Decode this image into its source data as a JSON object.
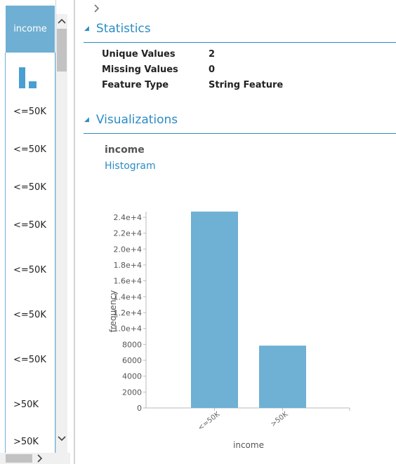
{
  "left_column": {
    "header": "income",
    "cells": [
      "<=50K",
      "<=50K",
      "<=50K",
      "<=50K",
      "<=50K",
      "<=50K",
      "<=50K",
      ">50K",
      ">50K"
    ]
  },
  "nav": {
    "expand_arrow": "›"
  },
  "statistics": {
    "title": "Statistics",
    "rows": [
      {
        "label": "Unique Values",
        "value": "2"
      },
      {
        "label": "Missing Values",
        "value": "0"
      },
      {
        "label": "Feature Type",
        "value": "String Feature"
      }
    ]
  },
  "visualizations": {
    "title": "Visualizations",
    "feature_name": "income",
    "chart_link": "Histogram"
  },
  "chart_data": {
    "type": "bar",
    "categories": [
      "<=50K",
      ">50K"
    ],
    "values": [
      24720,
      7841
    ],
    "xlabel": "income",
    "ylabel": "frequency",
    "ylim": [
      0,
      24000
    ],
    "y_ticks": [
      0,
      2000,
      4000,
      6000,
      8000,
      10000,
      12000,
      14000,
      16000,
      18000,
      20000,
      22000,
      24000
    ],
    "y_tick_labels": [
      "0",
      "2000",
      "4000",
      "6000",
      "8000",
      "1.0e+4",
      "1.2e+4",
      "1.4e+4",
      "1.6e+4",
      "1.8e+4",
      "2.0e+4",
      "2.2e+4",
      "2.4e+4"
    ],
    "bar_color": "#6fb0d5",
    "grid": false
  },
  "colors": {
    "accent": "#2b8cc4",
    "column_header": "#6fafd3"
  }
}
